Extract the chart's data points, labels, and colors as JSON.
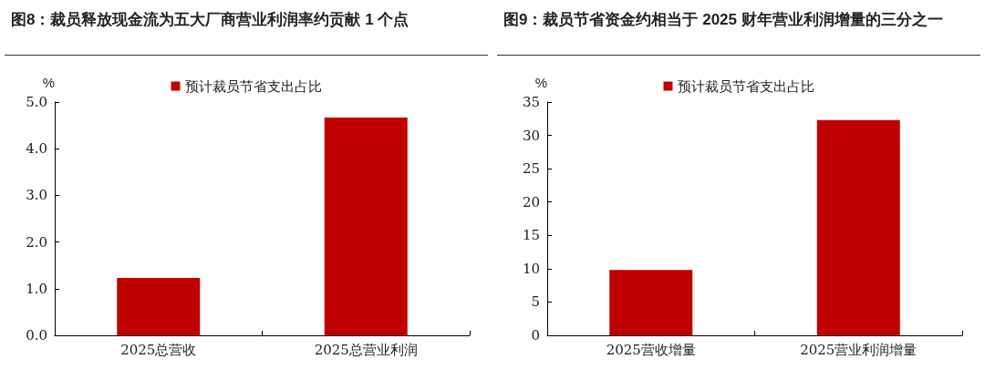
{
  "chart_data": [
    {
      "type": "bar",
      "title": "图8：裁员释放现金流为五大厂商营业利润率约贡献 1 个点",
      "ylabel": "%",
      "categories": [
        "2025总营收",
        "2025总营业利润"
      ],
      "series": [
        {
          "name": "预计裁员节省支出占比",
          "color": "#c00000",
          "values": [
            1.23,
            4.67
          ]
        }
      ],
      "ylim": [
        0,
        5
      ],
      "yticks": [
        {
          "value": 0,
          "label": "0.0"
        },
        {
          "value": 1,
          "label": "1.0"
        },
        {
          "value": 2,
          "label": "2.0"
        },
        {
          "value": 3,
          "label": "3.0"
        },
        {
          "value": 4,
          "label": "4.0"
        },
        {
          "value": 5,
          "label": "5.0"
        }
      ],
      "grid": false,
      "legend": "top"
    },
    {
      "type": "bar",
      "title": "图9：裁员节省资金约相当于 2025 财年营业利润增量的三分之一",
      "ylabel": "%",
      "categories": [
        "2025营收增量",
        "2025营业利润增量"
      ],
      "series": [
        {
          "name": "预计裁员节省支出占比",
          "color": "#c00000",
          "values": [
            9.8,
            32.3
          ]
        }
      ],
      "ylim": [
        0,
        35
      ],
      "yticks": [
        0,
        5,
        10,
        15,
        20,
        25,
        30,
        35
      ],
      "grid": false,
      "legend": "top"
    }
  ]
}
